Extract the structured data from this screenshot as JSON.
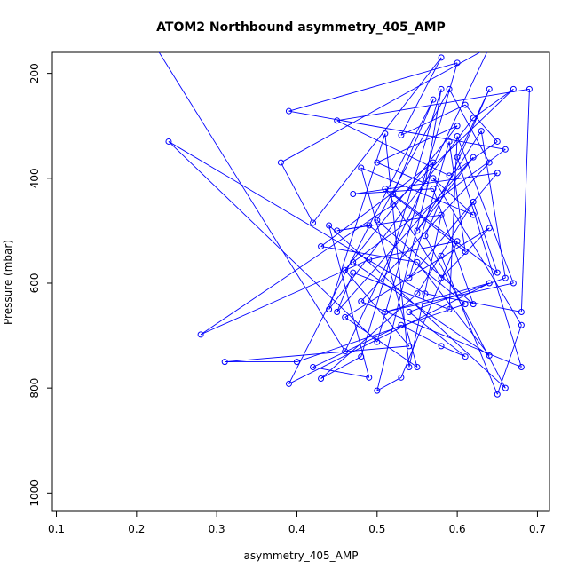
{
  "chart_data": {
    "type": "line",
    "title": "ATOM2 Northbound asymmetry_405_AMP",
    "xlabel": "asymmetry_405_AMP",
    "ylabel": "Pressure (mbar)",
    "xlim": [
      0.095,
      0.715
    ],
    "ylim": [
      1035,
      160
    ],
    "y_reversed": true,
    "xticks": [
      "0.1",
      "0.2",
      "0.3",
      "0.4",
      "0.5",
      "0.6",
      "0.7"
    ],
    "yticks": [
      "200",
      "400",
      "600",
      "800",
      "1000"
    ],
    "grid": false,
    "color": "#0000ff",
    "points": [
      [
        0.22,
        140
      ],
      [
        0.46,
        730
      ],
      [
        0.64,
        150
      ],
      [
        0.38,
        370
      ],
      [
        0.42,
        485
      ],
      [
        0.58,
        170
      ],
      [
        0.53,
        318
      ],
      [
        0.61,
        260
      ],
      [
        0.65,
        330
      ],
      [
        0.59,
        395
      ],
      [
        0.45,
        290
      ],
      [
        0.69,
        230
      ],
      [
        0.68,
        655
      ],
      [
        0.56,
        620
      ],
      [
        0.24,
        330
      ],
      [
        0.5,
        712
      ],
      [
        0.6,
        180
      ],
      [
        0.39,
        272
      ],
      [
        0.66,
        345
      ],
      [
        0.47,
        560
      ],
      [
        0.64,
        738
      ],
      [
        0.55,
        560
      ],
      [
        0.43,
        530
      ],
      [
        0.57,
        370
      ],
      [
        0.5,
        805
      ],
      [
        0.53,
        780
      ],
      [
        0.6,
        520
      ],
      [
        0.49,
        555
      ],
      [
        0.28,
        698
      ],
      [
        0.52,
        450
      ],
      [
        0.67,
        230
      ],
      [
        0.62,
        285
      ],
      [
        0.44,
        650
      ],
      [
        0.51,
        315
      ],
      [
        0.54,
        760
      ],
      [
        0.58,
        470
      ],
      [
        0.45,
        500
      ],
      [
        0.49,
        490
      ],
      [
        0.61,
        640
      ],
      [
        0.4,
        750
      ],
      [
        0.31,
        750
      ],
      [
        0.54,
        720
      ],
      [
        0.46,
        575
      ],
      [
        0.6,
        300
      ],
      [
        0.5,
        370
      ],
      [
        0.56,
        410
      ],
      [
        0.58,
        230
      ],
      [
        0.48,
        740
      ],
      [
        0.43,
        782
      ],
      [
        0.55,
        620
      ],
      [
        0.62,
        445
      ],
      [
        0.65,
        580
      ],
      [
        0.52,
        430
      ],
      [
        0.57,
        250
      ],
      [
        0.39,
        792
      ],
      [
        0.64,
        600
      ],
      [
        0.51,
        655
      ],
      [
        0.67,
        600
      ],
      [
        0.6,
        320
      ],
      [
        0.59,
        650
      ],
      [
        0.47,
        580
      ],
      [
        0.45,
        655
      ],
      [
        0.62,
        360
      ],
      [
        0.55,
        500
      ],
      [
        0.63,
        310
      ],
      [
        0.66,
        590
      ],
      [
        0.54,
        655
      ],
      [
        0.61,
        740
      ],
      [
        0.58,
        720
      ],
      [
        0.53,
        680
      ],
      [
        0.42,
        760
      ],
      [
        0.49,
        780
      ],
      [
        0.44,
        490
      ],
      [
        0.66,
        800
      ],
      [
        0.56,
        510
      ],
      [
        0.64,
        230
      ],
      [
        0.6,
        360
      ],
      [
        0.68,
        760
      ],
      [
        0.48,
        635
      ],
      [
        0.64,
        370
      ],
      [
        0.59,
        230
      ],
      [
        0.5,
        480
      ],
      [
        0.62,
        640
      ],
      [
        0.57,
        420
      ],
      [
        0.47,
        430
      ],
      [
        0.65,
        390
      ],
      [
        0.54,
        590
      ],
      [
        0.59,
        330
      ],
      [
        0.61,
        540
      ],
      [
        0.51,
        420
      ],
      [
        0.58,
        590
      ],
      [
        0.64,
        495
      ],
      [
        0.46,
        665
      ],
      [
        0.55,
        760
      ],
      [
        0.48,
        380
      ],
      [
        0.62,
        470
      ],
      [
        0.57,
        400
      ],
      [
        0.68,
        680
      ],
      [
        0.65,
        812
      ],
      [
        0.58,
        548
      ]
    ]
  }
}
